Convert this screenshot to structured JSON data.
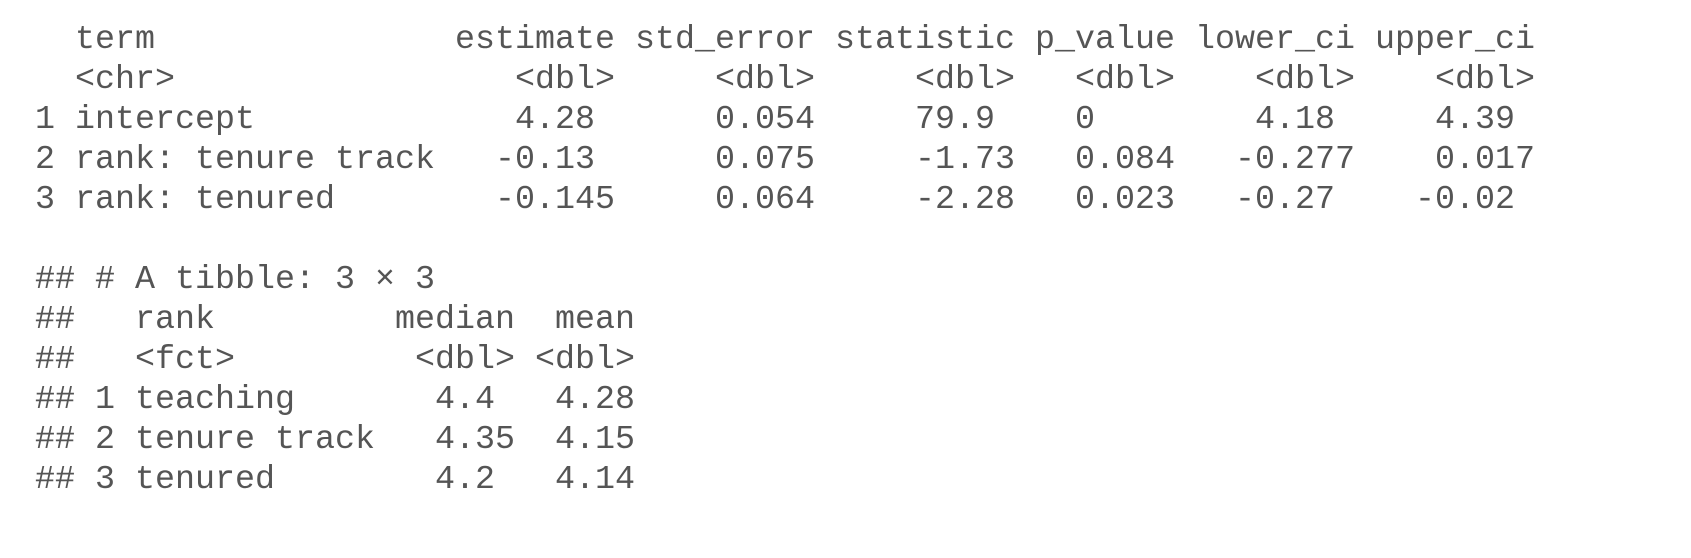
{
  "table1": {
    "columns": [
      "term",
      "estimate",
      "std_error",
      "statistic",
      "p_value",
      "lower_ci",
      "upper_ci"
    ],
    "types": [
      "<chr>",
      "<dbl>",
      "<dbl>",
      "<dbl>",
      "<dbl>",
      "<dbl>",
      "<dbl>"
    ],
    "rows": [
      {
        "index": "1",
        "cells": [
          "intercept",
          "4.28",
          "0.054",
          "79.9",
          "0",
          "4.18",
          "4.39"
        ]
      },
      {
        "index": "2",
        "cells": [
          "rank: tenure track",
          "-0.13",
          "0.075",
          "-1.73",
          "0.084",
          "-0.277",
          "0.017"
        ]
      },
      {
        "index": "3",
        "cells": [
          "rank: tenured",
          "-0.145",
          "0.064",
          "-2.28",
          "0.023",
          "-0.27",
          "-0.02"
        ]
      }
    ]
  },
  "table2": {
    "prefix": "##",
    "caption": "# A tibble: 3 × 3",
    "columns": [
      "rank",
      "median",
      "mean"
    ],
    "types": [
      "<fct>",
      "<dbl>",
      "<dbl>"
    ],
    "rows": [
      {
        "index": "1",
        "cells": [
          "teaching",
          "4.4",
          "4.28"
        ]
      },
      {
        "index": "2",
        "cells": [
          "tenure track",
          "4.35",
          "4.15"
        ]
      },
      {
        "index": "3",
        "cells": [
          "tenured",
          "4.2",
          "4.14"
        ]
      }
    ]
  }
}
